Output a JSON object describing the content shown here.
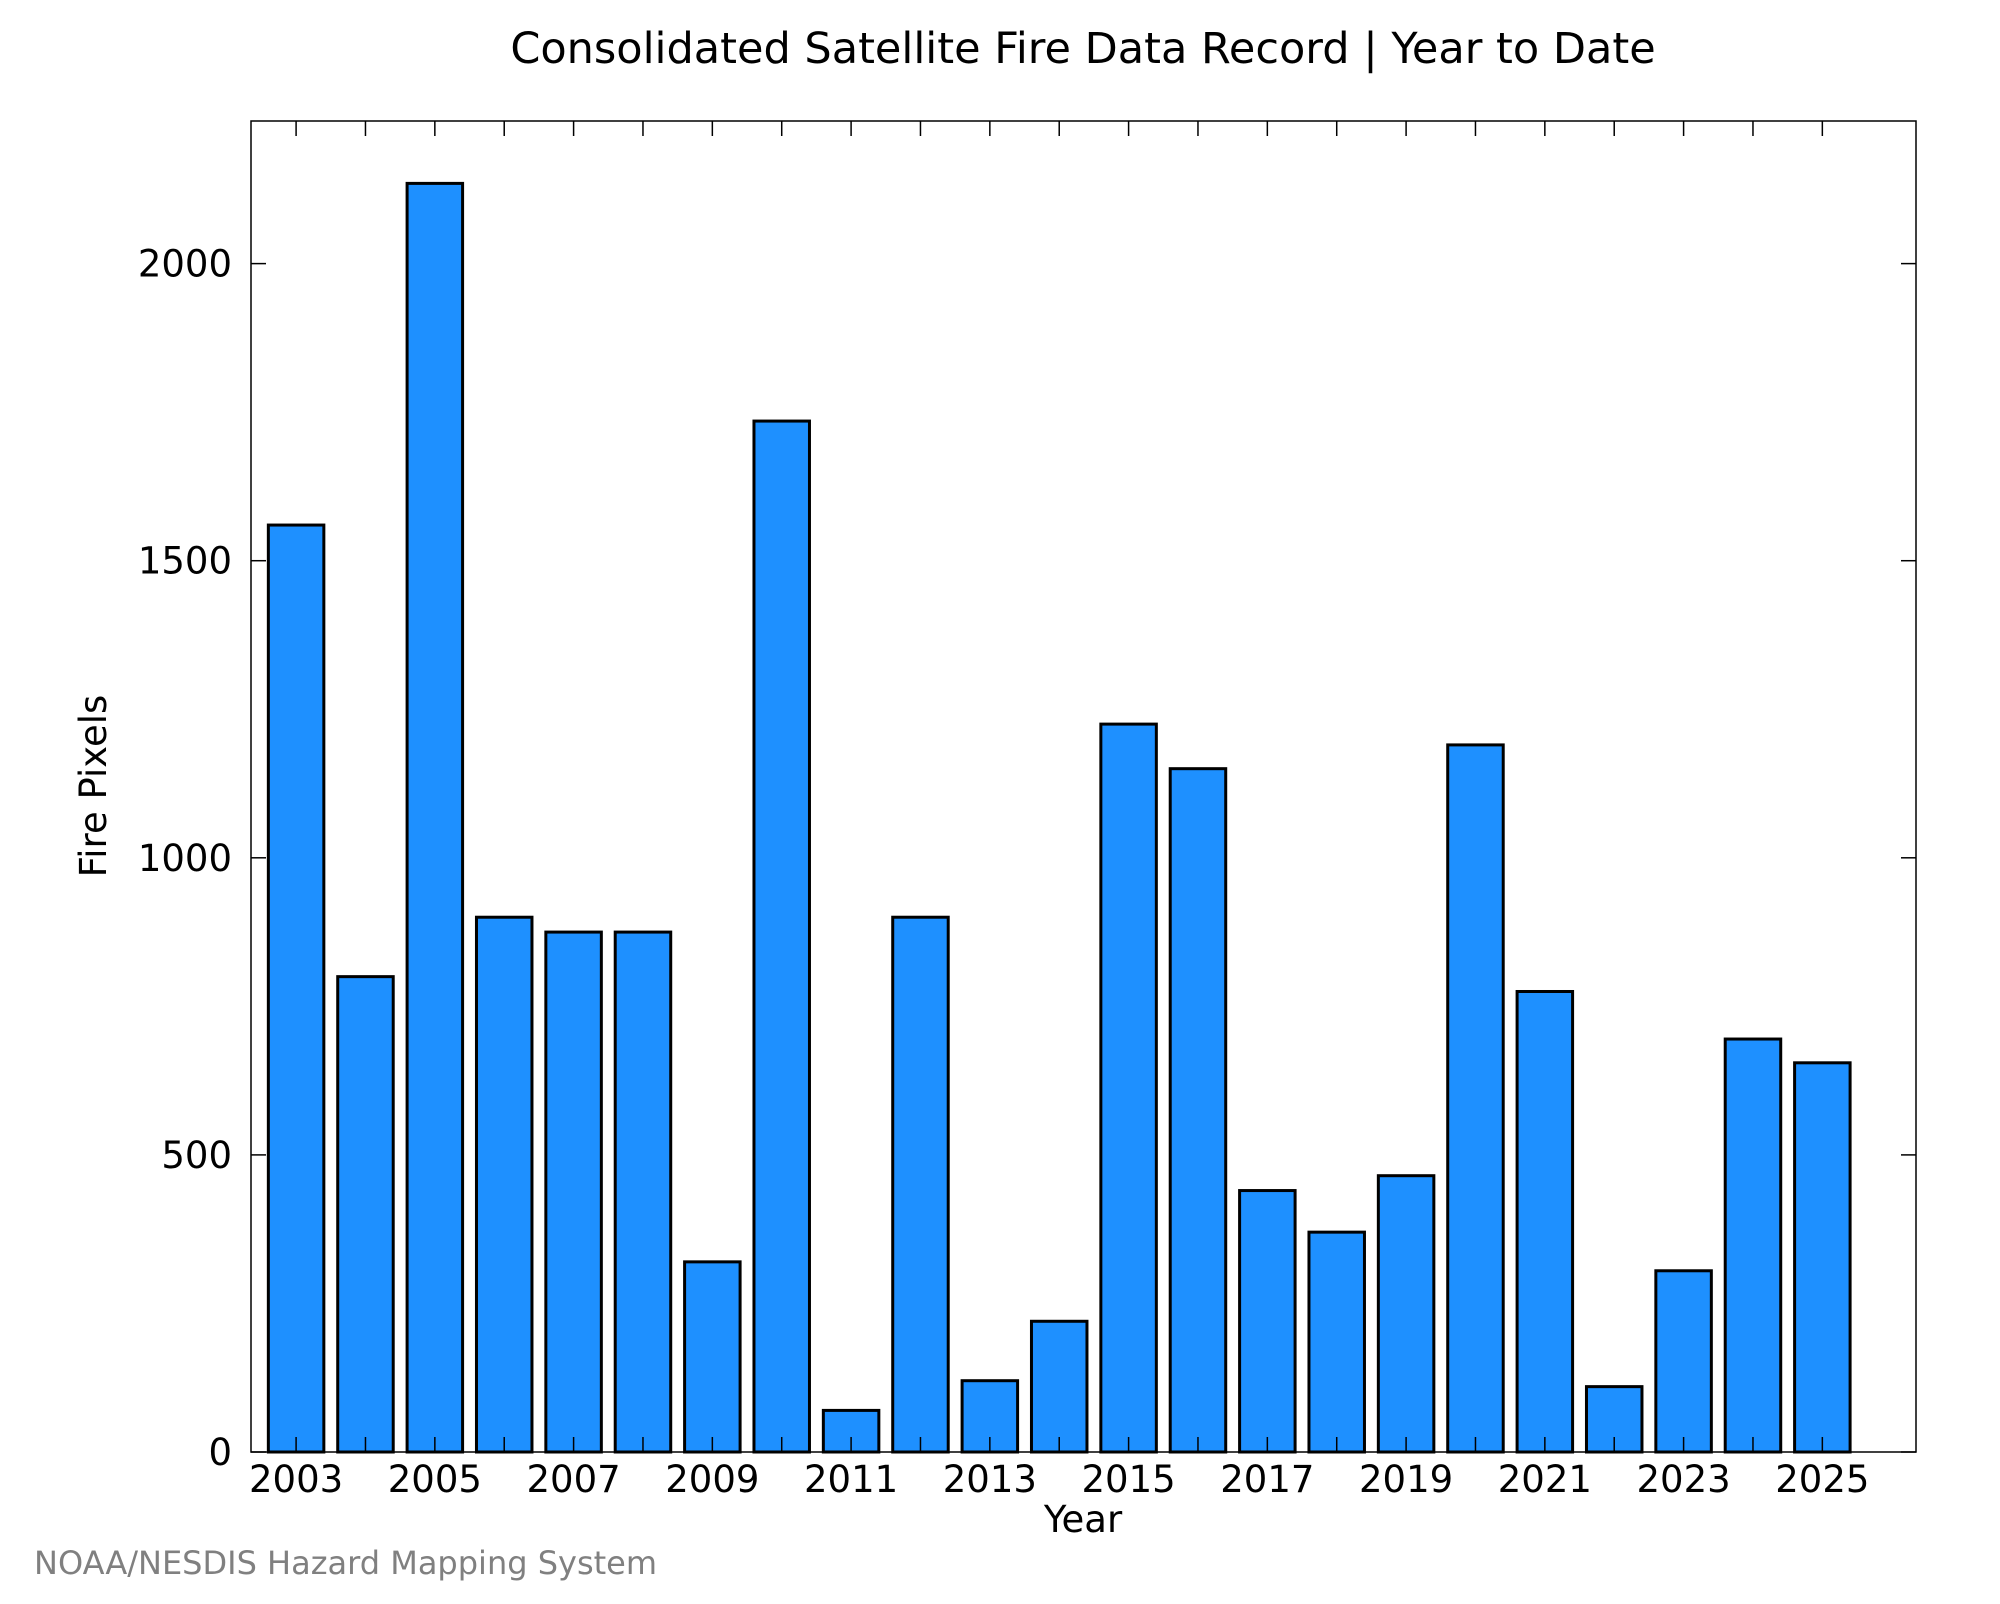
{
  "chart_data": {
    "type": "bar",
    "title": "Consolidated Satellite Fire Data Record | Year to Date",
    "xlabel": "Year",
    "ylabel": "Fire Pixels",
    "categories": [
      2003,
      2004,
      2005,
      2006,
      2007,
      2008,
      2009,
      2010,
      2011,
      2012,
      2013,
      2014,
      2015,
      2016,
      2017,
      2018,
      2019,
      2020,
      2021,
      2022,
      2023,
      2024,
      2025
    ],
    "values": [
      1560,
      800,
      2135,
      900,
      875,
      875,
      320,
      1735,
      70,
      900,
      120,
      220,
      1225,
      1150,
      440,
      370,
      465,
      1190,
      775,
      110,
      305,
      695,
      655
    ],
    "x_ticks": [
      2003,
      2005,
      2007,
      2009,
      2011,
      2013,
      2015,
      2017,
      2019,
      2021,
      2023,
      2025
    ],
    "y_ticks": [
      0,
      500,
      1000,
      1500,
      2000
    ],
    "xlim": [
      2002.35,
      2026.35
    ],
    "ylim": [
      0,
      2240
    ],
    "bar_color": "#1e90ff",
    "bar_edge_color": "#000000",
    "grid": false,
    "legend": "none"
  },
  "credit": "NOAA/NESDIS Hazard Mapping System"
}
